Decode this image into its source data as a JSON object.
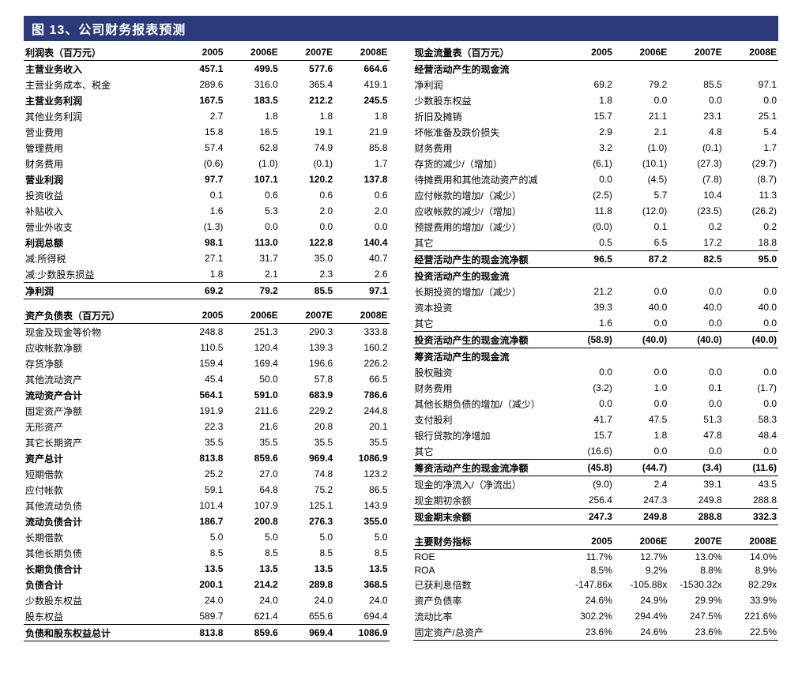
{
  "title_prefix": "图 13、",
  "title_text": "公司财务报表预测",
  "years": [
    "2005",
    "2006E",
    "2007E",
    "2008E"
  ],
  "income": {
    "caption": "利润表（百万元）",
    "rows": [
      {
        "l": "主营业务收入",
        "v": [
          "457.1",
          "499.5",
          "577.6",
          "664.6"
        ],
        "bold": true,
        "top": true
      },
      {
        "l": "主营业务成本、税金",
        "v": [
          "289.6",
          "316.0",
          "365.4",
          "419.1"
        ]
      },
      {
        "l": "主营业务利润",
        "v": [
          "167.5",
          "183.5",
          "212.2",
          "245.5"
        ],
        "bold": true
      },
      {
        "l": "其他业务利润",
        "v": [
          "2.7",
          "1.8",
          "1.8",
          "1.8"
        ]
      },
      {
        "l": "营业费用",
        "v": [
          "15.8",
          "16.5",
          "19.1",
          "21.9"
        ]
      },
      {
        "l": "管理费用",
        "v": [
          "57.4",
          "62.8",
          "74.9",
          "85.8"
        ]
      },
      {
        "l": "财务费用",
        "v": [
          "(0.6)",
          "(1.0)",
          "(0.1)",
          "1.7"
        ]
      },
      {
        "l": "营业利润",
        "v": [
          "97.7",
          "107.1",
          "120.2",
          "137.8"
        ],
        "bold": true
      },
      {
        "l": "投资收益",
        "v": [
          "0.1",
          "0.6",
          "0.6",
          "0.6"
        ]
      },
      {
        "l": "补贴收入",
        "v": [
          "1.6",
          "5.3",
          "2.0",
          "2.0"
        ]
      },
      {
        "l": "营业外收支",
        "v": [
          "(1.3)",
          "0.0",
          "0.0",
          "0.0"
        ]
      },
      {
        "l": "利润总额",
        "v": [
          "98.1",
          "113.0",
          "122.8",
          "140.4"
        ],
        "bold": true
      },
      {
        "l": "减:所得税",
        "v": [
          "27.1",
          "31.7",
          "35.0",
          "40.7"
        ]
      },
      {
        "l": "减:少数股东损益",
        "v": [
          "1.8",
          "2.1",
          "2.3",
          "2.6"
        ]
      },
      {
        "l": "净利润",
        "v": [
          "69.2",
          "79.2",
          "85.5",
          "97.1"
        ],
        "bold": true,
        "top": true,
        "bot": true
      }
    ]
  },
  "balance": {
    "caption": "资产负债表（百万元）",
    "rows": [
      {
        "l": "现金及现金等价物",
        "v": [
          "248.8",
          "251.3",
          "290.3",
          "333.8"
        ],
        "top": true
      },
      {
        "l": "应收帐款净额",
        "v": [
          "110.5",
          "120.4",
          "139.3",
          "160.2"
        ]
      },
      {
        "l": "存货净额",
        "v": [
          "159.4",
          "169.4",
          "196.6",
          "226.2"
        ]
      },
      {
        "l": "其他流动资产",
        "v": [
          "45.4",
          "50.0",
          "57.8",
          "66.5"
        ]
      },
      {
        "l": "流动资产合计",
        "v": [
          "564.1",
          "591.0",
          "683.9",
          "786.6"
        ],
        "bold": true
      },
      {
        "l": "固定资产净额",
        "v": [
          "191.9",
          "211.6",
          "229.2",
          "244.8"
        ]
      },
      {
        "l": "无形资产",
        "v": [
          "22.3",
          "21.6",
          "20.8",
          "20.1"
        ]
      },
      {
        "l": "其它长期资产",
        "v": [
          "35.5",
          "35.5",
          "35.5",
          "35.5"
        ]
      },
      {
        "l": "资产总计",
        "v": [
          "813.8",
          "859.6",
          "969.4",
          "1086.9"
        ],
        "bold": true
      },
      {
        "l": "短期借款",
        "v": [
          "25.2",
          "27.0",
          "74.8",
          "123.2"
        ]
      },
      {
        "l": "应付帐款",
        "v": [
          "59.1",
          "64.8",
          "75.2",
          "86.5"
        ]
      },
      {
        "l": "其他流动负债",
        "v": [
          "101.4",
          "107.9",
          "125.1",
          "143.9"
        ]
      },
      {
        "l": "流动负债合计",
        "v": [
          "186.7",
          "200.8",
          "276.3",
          "355.0"
        ],
        "bold": true
      },
      {
        "l": "长期借款",
        "v": [
          "5.0",
          "5.0",
          "5.0",
          "5.0"
        ]
      },
      {
        "l": "其他长期负债",
        "v": [
          "8.5",
          "8.5",
          "8.5",
          "8.5"
        ]
      },
      {
        "l": "长期负债合计",
        "v": [
          "13.5",
          "13.5",
          "13.5",
          "13.5"
        ],
        "bold": true
      },
      {
        "l": "负债合计",
        "v": [
          "200.1",
          "214.2",
          "289.8",
          "368.5"
        ],
        "bold": true
      },
      {
        "l": "少数股东权益",
        "v": [
          "24.0",
          "24.0",
          "24.0",
          "24.0"
        ]
      },
      {
        "l": "股东权益",
        "v": [
          "589.7",
          "621.4",
          "655.6",
          "694.4"
        ]
      },
      {
        "l": "负债和股东权益总计",
        "v": [
          "813.8",
          "859.6",
          "969.4",
          "1086.9"
        ],
        "bold": true,
        "top": true,
        "bot": true
      }
    ]
  },
  "cashflow": {
    "caption": "现金流量表（百万元）",
    "rows": [
      {
        "l": "经营活动产生的现金流",
        "v": [
          "",
          "",
          "",
          ""
        ],
        "bold": true,
        "top": true
      },
      {
        "l": "净利润",
        "v": [
          "69.2",
          "79.2",
          "85.5",
          "97.1"
        ]
      },
      {
        "l": "少数股东权益",
        "v": [
          "1.8",
          "0.0",
          "0.0",
          "0.0"
        ]
      },
      {
        "l": "折旧及摊销",
        "v": [
          "15.7",
          "21.1",
          "23.1",
          "25.1"
        ]
      },
      {
        "l": "坏帐准备及跌价损失",
        "v": [
          "2.9",
          "2.1",
          "4.8",
          "5.4"
        ]
      },
      {
        "l": "财务费用",
        "v": [
          "3.2",
          "(1.0)",
          "(0.1)",
          "1.7"
        ]
      },
      {
        "l": "存货的减少/（增加）",
        "v": [
          "(6.1)",
          "(10.1)",
          "(27.3)",
          "(29.7)"
        ]
      },
      {
        "l": "待摊费用和其他流动资产的减",
        "v": [
          "0.0",
          "(4.5)",
          "(7.8)",
          "(8.7)"
        ]
      },
      {
        "l": "应付帐款的增加/（减少）",
        "v": [
          "(2.5)",
          "5.7",
          "10.4",
          "11.3"
        ]
      },
      {
        "l": "应收帐款的减少/（增加）",
        "v": [
          "11.8",
          "(12.0)",
          "(23.5)",
          "(26.2)"
        ]
      },
      {
        "l": "预提费用的增加/（减少）",
        "v": [
          "(0.0)",
          "0.1",
          "0.2",
          "0.2"
        ]
      },
      {
        "l": "其它",
        "v": [
          "0.5",
          "6.5",
          "17.2",
          "18.8"
        ]
      },
      {
        "l": "经营活动产生的现金流净额",
        "v": [
          "96.5",
          "87.2",
          "82.5",
          "95.0"
        ],
        "bold": true,
        "top": true,
        "bot": true
      },
      {
        "l": "投资活动产生的现金流",
        "v": [
          "",
          "",
          "",
          ""
        ],
        "bold": true
      },
      {
        "l": "长期投资的增加/（减少）",
        "v": [
          "21.2",
          "0.0",
          "0.0",
          "0.0"
        ]
      },
      {
        "l": "资本投资",
        "v": [
          "39.3",
          "40.0",
          "40.0",
          "40.0"
        ]
      },
      {
        "l": "其它",
        "v": [
          "1.6",
          "0.0",
          "0.0",
          "0.0"
        ]
      },
      {
        "l": "投资活动产生的现金流净额",
        "v": [
          "(58.9)",
          "(40.0)",
          "(40.0)",
          "(40.0)"
        ],
        "bold": true,
        "top": true,
        "bot": true
      },
      {
        "l": "筹资活动产生的现金流",
        "v": [
          "",
          "",
          "",
          ""
        ],
        "bold": true
      },
      {
        "l": "股权融资",
        "v": [
          "0.0",
          "0.0",
          "0.0",
          "0.0"
        ]
      },
      {
        "l": "财务费用",
        "v": [
          "(3.2)",
          "1.0",
          "0.1",
          "(1.7)"
        ]
      },
      {
        "l": "其他长期负债的增加/（减少）",
        "v": [
          "0.0",
          "0.0",
          "0.0",
          "0.0"
        ]
      },
      {
        "l": "支付股利",
        "v": [
          "41.7",
          "47.5",
          "51.3",
          "58.3"
        ]
      },
      {
        "l": "银行贷款的净增加",
        "v": [
          "15.7",
          "1.8",
          "47.8",
          "48.4"
        ]
      },
      {
        "l": "其它",
        "v": [
          "(16.6)",
          "0.0",
          "0.0",
          "0.0"
        ]
      },
      {
        "l": "筹资活动产生的现金流净额",
        "v": [
          "(45.8)",
          "(44.7)",
          "(3.4)",
          "(11.6)"
        ],
        "bold": true,
        "top": true,
        "bot": true
      },
      {
        "l": "现金的净流入/（净流出）",
        "v": [
          "(9.0)",
          "2.4",
          "39.1",
          "43.5"
        ]
      },
      {
        "l": "现金期初余额",
        "v": [
          "256.4",
          "247.3",
          "249.8",
          "288.8"
        ]
      },
      {
        "l": "现金期末余额",
        "v": [
          "247.3",
          "249.8",
          "288.8",
          "332.3"
        ],
        "bold": true,
        "top": true,
        "bot": true
      }
    ]
  },
  "ratios": {
    "caption": "主要财务指标",
    "rows": [
      {
        "l": "ROE",
        "v": [
          "11.7%",
          "12.7%",
          "13.0%",
          "14.0%"
        ],
        "top": true
      },
      {
        "l": "ROA",
        "v": [
          "8.5%",
          "9.2%",
          "8.8%",
          "8.9%"
        ]
      },
      {
        "l": "已获利息倍数",
        "v": [
          "-147.86x",
          "-105.88x",
          "-1530.32x",
          "82.29x"
        ]
      },
      {
        "l": "资产负债率",
        "v": [
          "24.6%",
          "24.9%",
          "29.9%",
          "33.9%"
        ]
      },
      {
        "l": "流动比率",
        "v": [
          "302.2%",
          "294.4%",
          "247.5%",
          "221.6%"
        ]
      },
      {
        "l": "固定资产/总资产",
        "v": [
          "23.6%",
          "24.6%",
          "23.6%",
          "22.5%"
        ],
        "bot": true
      }
    ]
  }
}
